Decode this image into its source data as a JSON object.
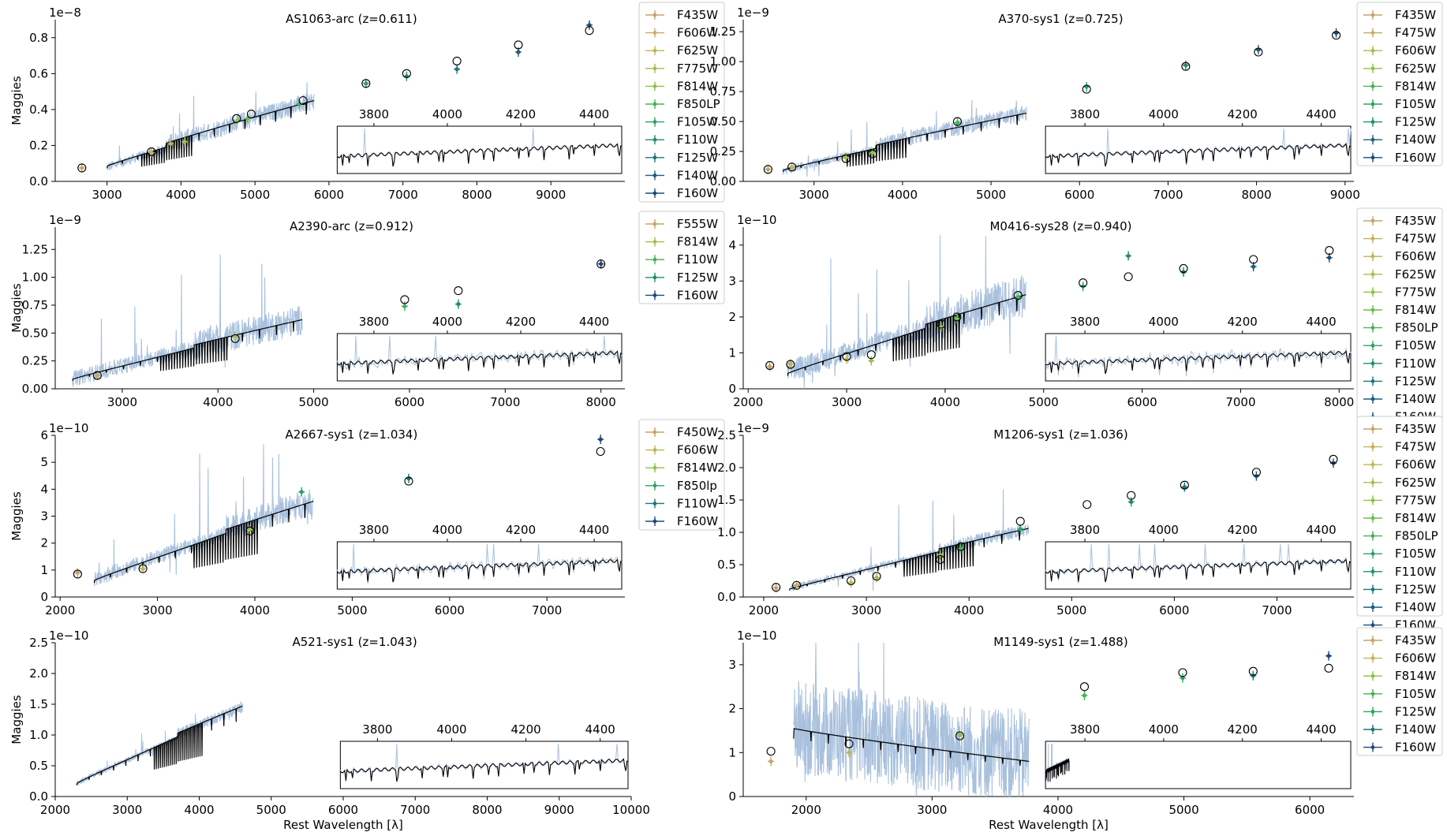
{
  "x_axis_label": "Rest Wavelength [λ]",
  "y_axis_label": "Maggies",
  "chart_data": [
    {
      "type": "line",
      "title": "AS1063-arc (z=0.611)",
      "exponent_label": "1e−8",
      "xlabel": "",
      "ylabel": "Maggies",
      "xlim": [
        2300,
        10000
      ],
      "ylim": [
        0,
        0.9
      ],
      "xticks": [
        3000,
        4000,
        5000,
        6000,
        7000,
        8000,
        9000
      ],
      "yticks": [
        0.0,
        0.2,
        0.4,
        0.6,
        0.8
      ],
      "ytick_labels": [
        "0.0",
        "0.2",
        "0.4",
        "0.6",
        "0.8"
      ],
      "spectrum": {
        "x_start": 3000,
        "x_end": 5800,
        "y_start": 0.09,
        "y_end": 0.45,
        "break_at": 3800,
        "noise": 0.03,
        "spikes": 0.3
      },
      "model": {
        "x_start": 3000,
        "x_end": 5800,
        "y_start": 0.1,
        "y_end": 0.45
      },
      "photometry_model": [
        [
          2660,
          0.075
        ],
        [
          3600,
          0.165
        ],
        [
          4750,
          0.35
        ],
        [
          4950,
          0.375
        ],
        [
          5650,
          0.45
        ],
        [
          6500,
          0.545
        ],
        [
          7050,
          0.6
        ],
        [
          7730,
          0.67
        ],
        [
          8560,
          0.76
        ],
        [
          9520,
          0.84
        ]
      ],
      "photometry_obs": [
        [
          2660,
          0.075
        ],
        [
          3600,
          0.16
        ],
        [
          3860,
          0.21
        ],
        [
          4050,
          0.22
        ],
        [
          4760,
          0.34
        ],
        [
          4900,
          0.35
        ],
        [
          5600,
          0.43
        ],
        [
          6500,
          0.545
        ],
        [
          7050,
          0.585
        ],
        [
          7730,
          0.625
        ],
        [
          8560,
          0.72
        ],
        [
          9520,
          0.87
        ]
      ],
      "legend": [
        "F435W",
        "F606W",
        "F625W",
        "F775W",
        "F814W",
        "F850LP",
        "F105W",
        "F110W",
        "F125W",
        "F140W",
        "F160W"
      ],
      "inset": {
        "xticks": [
          3800,
          4000,
          4200,
          4400
        ],
        "noise_level": 0.2
      }
    },
    {
      "type": "line",
      "title": "A370-sys1 (z=0.725)",
      "exponent_label": "1e−9",
      "xlabel": "",
      "ylabel": "",
      "xlim": [
        2200,
        9100
      ],
      "ylim": [
        0,
        1.35
      ],
      "xticks": [
        3000,
        4000,
        5000,
        6000,
        7000,
        8000,
        9000
      ],
      "yticks": [
        0.0,
        0.25,
        0.5,
        0.75,
        1.0,
        1.25
      ],
      "ytick_labels": [
        "0.00",
        "0.25",
        "0.50",
        "0.75",
        "1.00",
        "1.25"
      ],
      "spectrum": {
        "x_start": 2650,
        "x_end": 5400,
        "y_start": 0.1,
        "y_end": 0.57,
        "break_at": 3700,
        "noise": 0.04,
        "spikes": 0.3
      },
      "model": {
        "x_start": 2650,
        "x_end": 5400,
        "y_start": 0.11,
        "y_end": 0.57
      },
      "photometry_model": [
        [
          2480,
          0.1
        ],
        [
          2750,
          0.12
        ],
        [
          3360,
          0.19
        ],
        [
          3660,
          0.23
        ],
        [
          4620,
          0.5
        ],
        [
          6080,
          0.77
        ],
        [
          7200,
          0.96
        ],
        [
          8020,
          1.08
        ],
        [
          8900,
          1.22
        ]
      ],
      "photometry_obs": [
        [
          2480,
          0.1
        ],
        [
          2750,
          0.12
        ],
        [
          3360,
          0.2
        ],
        [
          3660,
          0.24
        ],
        [
          4620,
          0.49
        ],
        [
          6080,
          0.79
        ],
        [
          7200,
          0.97
        ],
        [
          8020,
          1.1
        ],
        [
          8900,
          1.24
        ]
      ],
      "legend": [
        "F435W",
        "F475W",
        "F606W",
        "F625W",
        "F814W",
        "F105W",
        "F125W",
        "F140W",
        "F160W"
      ],
      "inset": {
        "xticks": [
          3800,
          4000,
          4200,
          4400
        ],
        "noise_level": 0.3
      }
    },
    {
      "type": "line",
      "title": "A2390-arc (z=0.912)",
      "exponent_label": "1e−9",
      "xlabel": "",
      "ylabel": "Maggies",
      "xlim": [
        2300,
        8250
      ],
      "ylim": [
        0,
        1.45
      ],
      "xticks": [
        3000,
        4000,
        5000,
        6000,
        7000,
        8000
      ],
      "yticks": [
        0.0,
        0.25,
        0.5,
        0.75,
        1.0,
        1.25
      ],
      "ytick_labels": [
        "0.00",
        "0.25",
        "0.50",
        "0.75",
        "1.00",
        "1.25"
      ],
      "spectrum": {
        "x_start": 2480,
        "x_end": 4880,
        "y_start": 0.1,
        "y_end": 0.62,
        "break_at": 3750,
        "noise": 0.08,
        "spikes": 0.8
      },
      "model": {
        "x_start": 2480,
        "x_end": 4880,
        "y_start": 0.1,
        "y_end": 0.62
      },
      "photometry_model": [
        [
          2740,
          0.12
        ],
        [
          4180,
          0.45
        ],
        [
          5950,
          0.8
        ],
        [
          6510,
          0.88
        ],
        [
          8000,
          1.12
        ]
      ],
      "photometry_obs": [
        [
          2740,
          0.12
        ],
        [
          4180,
          0.47
        ],
        [
          5950,
          0.74
        ],
        [
          6510,
          0.76
        ],
        [
          8000,
          1.12
        ]
      ],
      "legend": [
        "F555W",
        "F814W",
        "F110W",
        "F125W",
        "F160W"
      ],
      "inset": {
        "xticks": [
          3800,
          4000,
          4200,
          4400
        ],
        "noise_level": 0.7
      }
    },
    {
      "type": "line",
      "title": "M0416-sys28 (z=0.940)",
      "exponent_label": "1e−10",
      "xlabel": "",
      "ylabel": "",
      "xlim": [
        1950,
        8150
      ],
      "ylim": [
        0,
        4.5
      ],
      "xticks": [
        2000,
        3000,
        4000,
        5000,
        6000,
        7000,
        8000
      ],
      "yticks": [
        0,
        1,
        2,
        3,
        4
      ],
      "ytick_labels": [
        "0",
        "1",
        "2",
        "3",
        "4"
      ],
      "spectrum": {
        "x_start": 2400,
        "x_end": 4820,
        "y_start": 0.55,
        "y_end": 2.6,
        "break_at": 3800,
        "noise": 0.35,
        "spikes": 1.0
      },
      "model": {
        "x_start": 2400,
        "x_end": 4820,
        "y_start": 0.5,
        "y_end": 2.62
      },
      "photometry_model": [
        [
          2220,
          0.65
        ],
        [
          2430,
          0.68
        ],
        [
          3000,
          0.9
        ],
        [
          3250,
          0.95
        ],
        [
          3960,
          1.8
        ],
        [
          4120,
          2.0
        ],
        [
          4740,
          2.6
        ],
        [
          5400,
          2.95
        ],
        [
          5860,
          3.12
        ],
        [
          6420,
          3.35
        ],
        [
          7130,
          3.6
        ],
        [
          7900,
          3.85
        ]
      ],
      "photometry_obs": [
        [
          2220,
          0.62
        ],
        [
          2430,
          0.7
        ],
        [
          3000,
          0.82
        ],
        [
          3250,
          0.78
        ],
        [
          3960,
          1.72
        ],
        [
          4120,
          1.95
        ],
        [
          4740,
          2.55
        ],
        [
          5400,
          2.85
        ],
        [
          5860,
          3.7
        ],
        [
          6420,
          3.25
        ],
        [
          7130,
          3.4
        ],
        [
          7900,
          3.65
        ]
      ],
      "legend": [
        "F435W",
        "F475W",
        "F606W",
        "F625W",
        "F775W",
        "F814W",
        "F850LP",
        "F105W",
        "F110W",
        "F125W",
        "F140W",
        "F160W"
      ],
      "inset": {
        "xticks": [
          3800,
          4000,
          4200,
          4400
        ],
        "noise_level": 0.9
      }
    },
    {
      "type": "line",
      "title": "A2667-sys1 (z=1.034)",
      "exponent_label": "1e−10",
      "xlabel": "",
      "ylabel": "Maggies",
      "xlim": [
        1950,
        7800
      ],
      "ylim": [
        0,
        6
      ],
      "xticks": [
        2000,
        3000,
        4000,
        5000,
        6000,
        7000
      ],
      "yticks": [
        0,
        1,
        2,
        3,
        4,
        5,
        6
      ],
      "ytick_labels": [
        "0",
        "1",
        "2",
        "3",
        "4",
        "5",
        "6"
      ],
      "spectrum": {
        "x_start": 2350,
        "x_end": 4600,
        "y_start": 0.75,
        "y_end": 3.55,
        "break_at": 3700,
        "noise": 0.3,
        "spikes": 0.8
      },
      "model": {
        "x_start": 2350,
        "x_end": 4600,
        "y_start": 0.72,
        "y_end": 3.55
      },
      "photometry_model": [
        [
          2180,
          0.85
        ],
        [
          2850,
          1.05
        ],
        [
          3950,
          2.45
        ],
        [
          5580,
          4.3
        ],
        [
          7550,
          5.4
        ]
      ],
      "photometry_obs": [
        [
          2180,
          0.9
        ],
        [
          2850,
          1.05
        ],
        [
          3950,
          2.5
        ],
        [
          4480,
          3.9
        ],
        [
          5580,
          4.4
        ],
        [
          7550,
          5.85
        ]
      ],
      "legend": [
        "F450W",
        "F606W",
        "F814W",
        "F850lp",
        "F110W",
        "F160W"
      ],
      "inset": {
        "xticks": [
          3800,
          4000,
          4200,
          4400
        ],
        "noise_level": 0.6
      }
    },
    {
      "type": "line",
      "title": "M1206-sys1 (z=1.036)",
      "exponent_label": "1e−9",
      "xlabel": "",
      "ylabel": "",
      "xlim": [
        1800,
        7750
      ],
      "ylim": [
        0,
        2.5
      ],
      "xticks": [
        2000,
        3000,
        4000,
        5000,
        6000,
        7000
      ],
      "yticks": [
        0.0,
        0.5,
        1.0,
        1.5,
        2.0,
        2.5
      ],
      "ytick_labels": [
        "0.0",
        "0.5",
        "1.0",
        "1.5",
        "2.0",
        "2.5"
      ],
      "spectrum": {
        "x_start": 2250,
        "x_end": 4580,
        "y_start": 0.15,
        "y_end": 1.05,
        "break_at": 3700,
        "noise": 0.06,
        "spikes": 0.5
      },
      "model": {
        "x_start": 2250,
        "x_end": 4580,
        "y_start": 0.14,
        "y_end": 1.06
      },
      "photometry_model": [
        [
          2120,
          0.15
        ],
        [
          2320,
          0.18
        ],
        [
          2850,
          0.25
        ],
        [
          3100,
          0.32
        ],
        [
          3720,
          0.58
        ],
        [
          3920,
          0.78
        ],
        [
          4500,
          1.17
        ],
        [
          5150,
          1.43
        ],
        [
          5580,
          1.57
        ],
        [
          6100,
          1.73
        ],
        [
          6800,
          1.93
        ],
        [
          7550,
          2.13
        ]
      ],
      "photometry_obs": [
        [
          2120,
          0.14
        ],
        [
          2320,
          0.18
        ],
        [
          2850,
          0.22
        ],
        [
          3100,
          0.3
        ],
        [
          3720,
          0.65
        ],
        [
          3920,
          0.75
        ],
        [
          4500,
          1.05
        ],
        [
          5580,
          1.47
        ],
        [
          6100,
          1.7
        ],
        [
          6800,
          1.87
        ],
        [
          7550,
          2.07
        ]
      ],
      "legend": [
        "F435W",
        "F475W",
        "F606W",
        "F625W",
        "F775W",
        "F814W",
        "F850LP",
        "F105W",
        "F110W",
        "F125W",
        "F140W",
        "F160W"
      ],
      "inset": {
        "xticks": [
          3800,
          4000,
          4200,
          4400
        ],
        "noise_level": 0.4
      }
    },
    {
      "type": "line",
      "title": "A521-sys1 (z=1.043)",
      "exponent_label": "1e−10",
      "xlabel": "Rest Wavelength [λ]",
      "ylabel": "Maggies",
      "xlim": [
        2000,
        10000
      ],
      "ylim": [
        0,
        2.5
      ],
      "xticks": [
        2000,
        3000,
        4000,
        5000,
        6000,
        7000,
        8000,
        9000,
        10000
      ],
      "yticks": [
        0.0,
        0.5,
        1.0,
        1.5,
        2.0,
        2.5
      ],
      "ytick_labels": [
        "0.0",
        "0.5",
        "1.0",
        "1.5",
        "2.0",
        "2.5"
      ],
      "spectrum": {
        "x_start": 2300,
        "x_end": 4600,
        "y_start": 0.25,
        "y_end": 1.45,
        "break_at": 3700,
        "noise": 0.05,
        "spikes": 0.2
      },
      "model": {
        "x_start": 2300,
        "x_end": 4600,
        "y_start": 0.25,
        "y_end": 1.47
      },
      "photometry_model": [],
      "photometry_obs": [],
      "legend": [],
      "inset": {
        "xticks": [
          3800,
          4000,
          4200,
          4400
        ],
        "noise_level": 0.3
      }
    },
    {
      "type": "line",
      "title": "M1149-sys1 (z=1.488)",
      "exponent_label": "1e−10",
      "xlabel": "Rest Wavelength [λ]",
      "ylabel": "",
      "xlim": [
        1500,
        6350
      ],
      "ylim": [
        0,
        3.5
      ],
      "xticks": [
        2000,
        3000,
        4000,
        5000,
        6000
      ],
      "yticks": [
        0,
        1,
        2,
        3
      ],
      "ytick_labels": [
        "0",
        "1",
        "2",
        "3"
      ],
      "spectrum": {
        "x_start": 1900,
        "x_end": 3770,
        "y_start": 1.6,
        "y_end": 0.9,
        "break_at": 0,
        "noise": 1.2,
        "spikes": 2.0
      },
      "model": {
        "x_start": 1900,
        "x_end": 3770,
        "y_start": 1.55,
        "y_end": 0.8
      },
      "photometry_model": [
        [
          1720,
          1.03
        ],
        [
          2340,
          1.2
        ],
        [
          3220,
          1.38
        ],
        [
          4210,
          2.5
        ],
        [
          4990,
          2.82
        ],
        [
          5550,
          2.85
        ],
        [
          6150,
          2.92
        ]
      ],
      "photometry_obs": [
        [
          1720,
          0.8
        ],
        [
          2340,
          1.0
        ],
        [
          3220,
          1.4
        ],
        [
          4210,
          2.3
        ],
        [
          4990,
          2.7
        ],
        [
          5550,
          2.75
        ],
        [
          6150,
          3.2
        ]
      ],
      "legend": [
        "F435W",
        "F606W",
        "F814W",
        "F105W",
        "F125W",
        "F140W",
        "F160W"
      ],
      "inset": {
        "xticks": [
          3800,
          4000,
          4200,
          4400
        ],
        "noise_level": 0.3,
        "truncated": true
      }
    }
  ],
  "colors": {
    "spectrum": "#a9c1dd",
    "model": "#000000",
    "legend_palette": [
      "#c7a46c",
      "#c9ad5c",
      "#bdb653",
      "#a8bc4c",
      "#8fc149",
      "#6cbd4c",
      "#46b155",
      "#2fa064",
      "#238c70",
      "#1d7678",
      "#1e5d7c",
      "#1f4a78"
    ]
  }
}
